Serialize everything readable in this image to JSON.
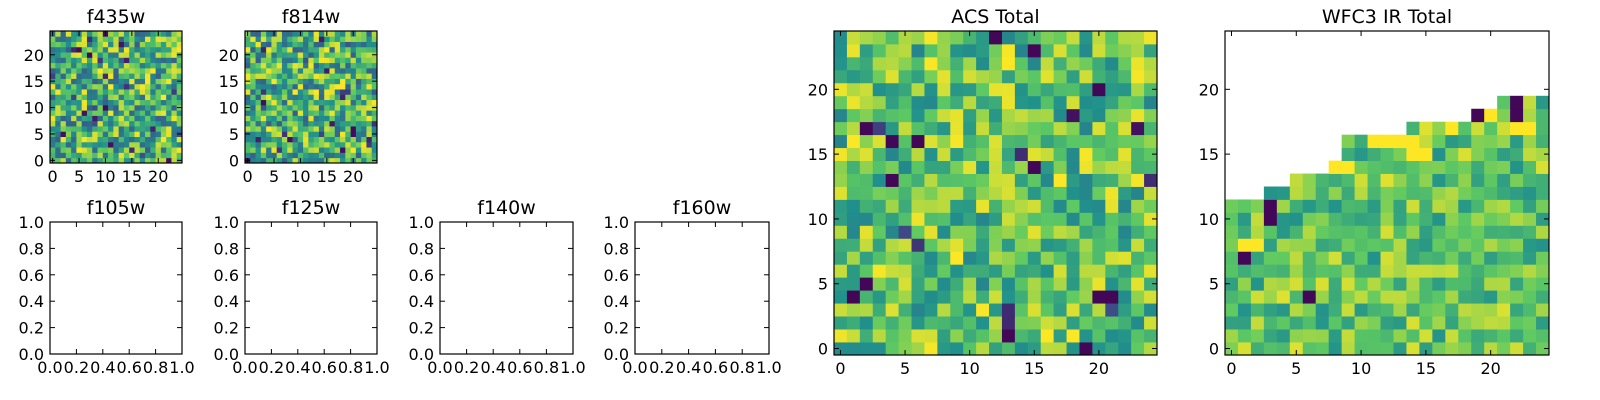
{
  "figure": {
    "background": "#ffffff"
  },
  "colormap": {
    "name": "viridis",
    "stops": [
      "#440154",
      "#3b528b",
      "#21918c",
      "#5ec962",
      "#fde725"
    ]
  },
  "chart_data": [
    {
      "id": "f435w",
      "type": "heatmap",
      "title": "f435w",
      "grid_size": 25,
      "xlim": [
        -0.5,
        24.5
      ],
      "ylim": [
        -0.5,
        24.5
      ],
      "xticks": [
        0,
        5,
        10,
        15,
        20
      ],
      "yticks": [
        0,
        5,
        10,
        15,
        20
      ],
      "xtick_labels": [
        "0",
        "5",
        "10",
        "15",
        "20"
      ],
      "ytick_labels": [
        "0",
        "5",
        "10",
        "15",
        "20"
      ],
      "pattern": "noise",
      "seed": 11,
      "value_range": [
        0.3,
        1.0
      ],
      "dark_fraction": 0.03
    },
    {
      "id": "f814w",
      "type": "heatmap",
      "title": "f814w",
      "grid_size": 25,
      "xlim": [
        -0.5,
        24.5
      ],
      "ylim": [
        -0.5,
        24.5
      ],
      "xticks": [
        0,
        5,
        10,
        15,
        20
      ],
      "yticks": [
        0,
        5,
        10,
        15,
        20
      ],
      "xtick_labels": [
        "0",
        "5",
        "10",
        "15",
        "20"
      ],
      "ytick_labels": [
        "0",
        "5",
        "10",
        "15",
        "20"
      ],
      "pattern": "noise",
      "seed": 27,
      "value_range": [
        0.3,
        1.0
      ],
      "dark_fraction": 0.03
    },
    {
      "id": "f105w",
      "type": "heatmap",
      "title": "f105w",
      "empty": true,
      "xlim": [
        0,
        1
      ],
      "ylim": [
        0,
        1
      ],
      "xticks": [
        0,
        0.2,
        0.4,
        0.6,
        0.8,
        1.0
      ],
      "yticks": [
        0,
        0.2,
        0.4,
        0.6,
        0.8,
        1.0
      ],
      "xtick_labels": [
        "0.0",
        "0.2",
        "0.4",
        "0.6",
        "0.8",
        "1.0"
      ],
      "ytick_labels": [
        "0.0",
        "0.2",
        "0.4",
        "0.6",
        "0.8",
        "1.0"
      ]
    },
    {
      "id": "f125w",
      "type": "heatmap",
      "title": "f125w",
      "empty": true,
      "xlim": [
        0,
        1
      ],
      "ylim": [
        0,
        1
      ],
      "xticks": [
        0,
        0.2,
        0.4,
        0.6,
        0.8,
        1.0
      ],
      "yticks": [
        0,
        0.2,
        0.4,
        0.6,
        0.8,
        1.0
      ],
      "xtick_labels": [
        "0.0",
        "0.2",
        "0.4",
        "0.6",
        "0.8",
        "1.0"
      ],
      "ytick_labels": [
        "0.0",
        "0.2",
        "0.4",
        "0.6",
        "0.8",
        "1.0"
      ]
    },
    {
      "id": "f140w",
      "type": "heatmap",
      "title": "f140w",
      "empty": true,
      "xlim": [
        0,
        1
      ],
      "ylim": [
        0,
        1
      ],
      "xticks": [
        0,
        0.2,
        0.4,
        0.6,
        0.8,
        1.0
      ],
      "yticks": [
        0,
        0.2,
        0.4,
        0.6,
        0.8,
        1.0
      ],
      "xtick_labels": [
        "0.0",
        "0.2",
        "0.4",
        "0.6",
        "0.8",
        "1.0"
      ],
      "ytick_labels": [
        "0.0",
        "0.2",
        "0.4",
        "0.6",
        "0.8",
        "1.0"
      ]
    },
    {
      "id": "f160w",
      "type": "heatmap",
      "title": "f160w",
      "empty": true,
      "xlim": [
        0,
        1
      ],
      "ylim": [
        0,
        1
      ],
      "xticks": [
        0,
        0.2,
        0.4,
        0.6,
        0.8,
        1.0
      ],
      "yticks": [
        0,
        0.2,
        0.4,
        0.6,
        0.8,
        1.0
      ],
      "xtick_labels": [
        "0.0",
        "0.2",
        "0.4",
        "0.6",
        "0.8",
        "1.0"
      ],
      "ytick_labels": [
        "0.0",
        "0.2",
        "0.4",
        "0.6",
        "0.8",
        "1.0"
      ]
    },
    {
      "id": "acs-total",
      "type": "heatmap",
      "title": "ACS Total",
      "grid_size": 25,
      "xlim": [
        -0.5,
        24.5
      ],
      "ylim": [
        -0.5,
        24.5
      ],
      "xticks": [
        0,
        5,
        10,
        15,
        20
      ],
      "yticks": [
        0,
        5,
        10,
        15,
        20
      ],
      "xtick_labels": [
        "0",
        "5",
        "10",
        "15",
        "20"
      ],
      "ytick_labels": [
        "0",
        "5",
        "10",
        "15",
        "20"
      ],
      "pattern": "noise",
      "seed": 53,
      "value_range": [
        0.45,
        1.0
      ],
      "dark_fraction": 0.015,
      "dark_cells": [
        [
          19,
          0
        ],
        [
          13,
          1
        ],
        [
          20,
          4
        ],
        [
          21,
          4
        ],
        [
          1,
          4
        ],
        [
          2,
          5
        ],
        [
          4,
          13
        ],
        [
          2,
          17
        ],
        [
          4,
          16
        ],
        [
          6,
          16
        ],
        [
          15,
          14
        ],
        [
          20,
          20
        ],
        [
          12,
          24
        ],
        [
          15,
          23
        ]
      ]
    },
    {
      "id": "wfc3-ir-total",
      "type": "heatmap",
      "title": "WFC3 IR Total",
      "grid_size": 25,
      "xlim": [
        -0.5,
        24.5
      ],
      "ylim": [
        -0.5,
        24.5
      ],
      "xticks": [
        0,
        5,
        10,
        15,
        20
      ],
      "yticks": [
        0,
        5,
        10,
        15,
        20
      ],
      "xtick_labels": [
        "0",
        "5",
        "10",
        "15",
        "20"
      ],
      "ytick_labels": [
        "0",
        "5",
        "10",
        "15",
        "20"
      ],
      "pattern": "noise",
      "seed": 91,
      "value_range": [
        0.5,
        0.95
      ],
      "dark_fraction": 0.0,
      "masked_above_columns": [
        11,
        11,
        11,
        12,
        12,
        13,
        13,
        13,
        14,
        16,
        16,
        16,
        16,
        16,
        17,
        17,
        17,
        17,
        17,
        18,
        18,
        19,
        19,
        19,
        19
      ],
      "dark_cells": [
        [
          3,
          10
        ],
        [
          3,
          11
        ],
        [
          1,
          7
        ],
        [
          22,
          19
        ],
        [
          22,
          18
        ],
        [
          19,
          18
        ],
        [
          6,
          4
        ]
      ],
      "bright_cells": [
        [
          8,
          15
        ],
        [
          8,
          14
        ],
        [
          9,
          14
        ],
        [
          11,
          16
        ],
        [
          12,
          16
        ],
        [
          13,
          16
        ],
        [
          14,
          16
        ],
        [
          14,
          15
        ],
        [
          15,
          15
        ],
        [
          17,
          17
        ],
        [
          20,
          18
        ],
        [
          22,
          17
        ],
        [
          23,
          17
        ],
        [
          1,
          8
        ],
        [
          2,
          8
        ]
      ]
    }
  ]
}
